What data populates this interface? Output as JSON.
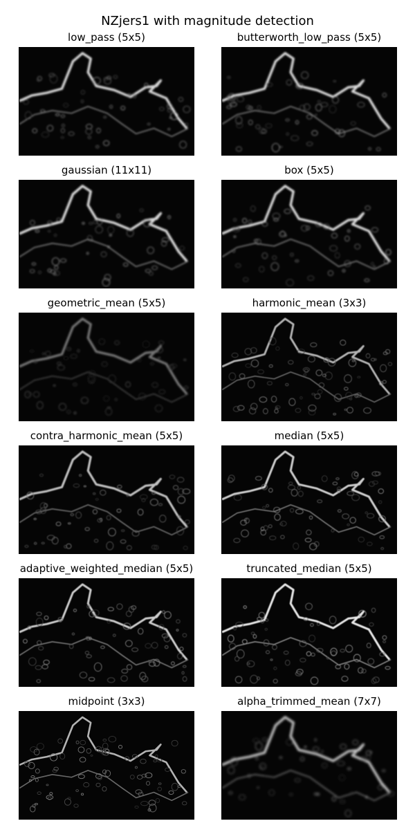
{
  "figure": {
    "title": "NZjers1 with magnitude detection"
  },
  "panels": [
    {
      "title": "low_pass (5x5)",
      "intensity": 0.85,
      "sharpness": 0.4
    },
    {
      "title": "butterworth_low_pass (5x5)",
      "intensity": 0.85,
      "sharpness": 0.4
    },
    {
      "title": "gaussian (11x11)",
      "intensity": 0.85,
      "sharpness": 0.35
    },
    {
      "title": "box (5x5)",
      "intensity": 0.85,
      "sharpness": 0.4
    },
    {
      "title": "geometric_mean (5x5)",
      "intensity": 0.45,
      "sharpness": 0.4
    },
    {
      "title": "harmonic_mean (3x3)",
      "intensity": 0.7,
      "sharpness": 0.8
    },
    {
      "title": "contra_harmonic_mean (5x5)",
      "intensity": 0.75,
      "sharpness": 0.6
    },
    {
      "title": "median (5x5)",
      "intensity": 0.8,
      "sharpness": 0.7
    },
    {
      "title": "adaptive_weighted_median (5x5)",
      "intensity": 0.8,
      "sharpness": 0.75
    },
    {
      "title": "truncated_median (5x5)",
      "intensity": 0.9,
      "sharpness": 0.7
    },
    {
      "title": "midpoint (3x3)",
      "intensity": 0.7,
      "sharpness": 1.0
    },
    {
      "title": "alpha_trimmed_mean (7x7)",
      "intensity": 0.75,
      "sharpness": 0.3
    }
  ]
}
